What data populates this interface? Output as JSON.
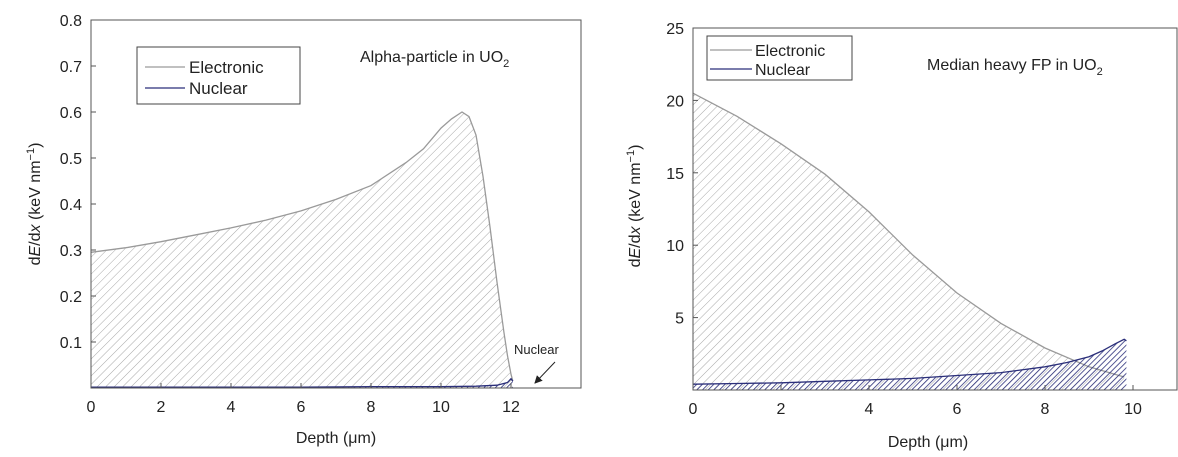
{
  "chart_data": [
    {
      "type": "area",
      "title": "Alpha-particle in UO",
      "title_sub": "2",
      "xlabel": "Depth (μm)",
      "ylabel_pre": "d",
      "ylabel_E": "E",
      "ylabel_mid": "/d",
      "ylabel_x": "x",
      "ylabel_post": " (keV nm",
      "ylabel_sup": "−1",
      "ylabel_end": ")",
      "xlim": [
        0,
        14
      ],
      "ylim": [
        0,
        0.8
      ],
      "xticks": [
        0,
        2,
        4,
        6,
        8,
        10,
        12
      ],
      "xtick_labels": [
        "0",
        "2",
        "4",
        "6",
        "8",
        "10",
        "12"
      ],
      "yticks": [
        0.1,
        0.2,
        0.3,
        0.4,
        0.5,
        0.6,
        0.7,
        0.8
      ],
      "ytick_labels": [
        "0.1",
        "0.2",
        "0.3",
        "0.4",
        "0.5",
        "0.6",
        "0.7",
        "0.8"
      ],
      "legend_position": "top-left",
      "grid": false,
      "annotation": {
        "text": "Nuclear",
        "x": 12.0,
        "y": 0.018
      },
      "series": [
        {
          "name": "Electronic",
          "color": "#9a9a9a",
          "x": [
            0,
            1,
            2,
            3,
            4,
            5,
            6,
            7,
            8,
            9,
            9.5,
            10,
            10.3,
            10.6,
            10.8,
            11.0,
            11.2,
            11.4,
            11.6,
            11.8,
            11.9,
            12.0,
            12.05
          ],
          "y": [
            0.295,
            0.305,
            0.318,
            0.333,
            0.348,
            0.365,
            0.385,
            0.41,
            0.44,
            0.49,
            0.52,
            0.565,
            0.585,
            0.6,
            0.59,
            0.55,
            0.46,
            0.35,
            0.23,
            0.12,
            0.07,
            0.03,
            0.015
          ]
        },
        {
          "name": "Nuclear",
          "color": "#2b2f7a",
          "x": [
            0,
            2,
            4,
            6,
            8,
            10,
            11,
            11.6,
            11.9,
            12.0,
            12.05
          ],
          "y": [
            0.002,
            0.002,
            0.002,
            0.002,
            0.003,
            0.003,
            0.004,
            0.006,
            0.012,
            0.02,
            0.015
          ]
        }
      ]
    },
    {
      "type": "area",
      "title": "Median heavy FP in UO",
      "title_sub": "2",
      "xlabel": "Depth (μm)",
      "ylabel_pre": "d",
      "ylabel_E": "E",
      "ylabel_mid": "/d",
      "ylabel_x": "x",
      "ylabel_post": " (keV nm",
      "ylabel_sup": "−1",
      "ylabel_end": ")",
      "xlim": [
        0,
        11
      ],
      "ylim": [
        0,
        25
      ],
      "xticks": [
        0,
        2,
        4,
        6,
        8,
        10
      ],
      "xtick_labels": [
        "0",
        "2",
        "4",
        "6",
        "8",
        "10"
      ],
      "yticks": [
        5,
        10,
        15,
        20,
        25
      ],
      "ytick_labels": [
        "5",
        "10",
        "15",
        "20",
        "25"
      ],
      "legend_position": "top-left",
      "grid": false,
      "series": [
        {
          "name": "Electronic",
          "color": "#9a9a9a",
          "x": [
            0,
            1,
            2,
            3,
            4,
            5,
            6,
            7,
            8,
            9,
            9.8
          ],
          "y": [
            20.5,
            18.9,
            17.0,
            14.9,
            12.3,
            9.3,
            6.7,
            4.6,
            2.9,
            1.6,
            0.9
          ]
        },
        {
          "name": "Nuclear",
          "color": "#2b2f7a",
          "x": [
            0,
            1,
            2,
            3,
            4,
            5,
            6,
            7,
            8,
            8.5,
            9,
            9.3,
            9.6,
            9.8,
            9.85
          ],
          "y": [
            0.4,
            0.45,
            0.5,
            0.6,
            0.7,
            0.8,
            1.0,
            1.2,
            1.6,
            1.9,
            2.3,
            2.7,
            3.2,
            3.5,
            3.4
          ]
        }
      ]
    }
  ]
}
